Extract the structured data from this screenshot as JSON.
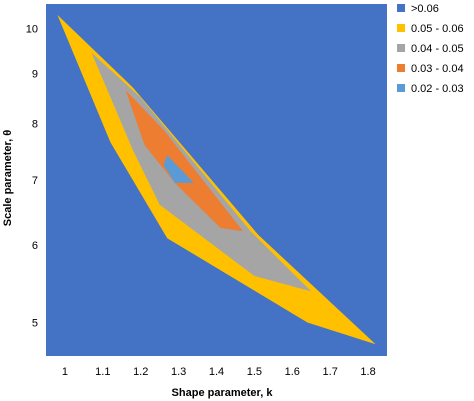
{
  "chart_data": {
    "type": "contour",
    "xlabel": "Shape parameter, k",
    "ylabel": "Scale parameter, θ",
    "x_ticks": [
      1,
      1.1,
      1.2,
      1.3,
      1.4,
      1.5,
      1.6,
      1.7,
      1.8
    ],
    "y_ticks": [
      5,
      6,
      7,
      8,
      9,
      10
    ],
    "y_scale": "log",
    "xlim": [
      0.95,
      1.85
    ],
    "ylim": [
      4.62,
      10.6
    ],
    "legend_position": "right",
    "legend": [
      {
        "label": ">0.06",
        "color": "#4472C4"
      },
      {
        "label": "0.05 - 0.06",
        "color": "#FFC000"
      },
      {
        "label": "0.04 - 0.05",
        "color": "#A5A5A5"
      },
      {
        "label": "0.03 - 0.04",
        "color": "#ED7D31"
      },
      {
        "label": "0.02 - 0.03",
        "color": "#5B9BD5"
      }
    ],
    "regions": [
      {
        "level": "0.05 - 0.06",
        "color": "#FFC000",
        "points": [
          [
            0.98,
            10.33
          ],
          [
            1.18,
            8.7
          ],
          [
            1.51,
            6.15
          ],
          [
            1.82,
            4.75
          ],
          [
            1.64,
            5.0
          ],
          [
            1.27,
            6.1
          ],
          [
            1.12,
            7.65
          ]
        ]
      },
      {
        "level": "0.04 - 0.05",
        "color": "#A5A5A5",
        "points": [
          [
            1.07,
            9.45
          ],
          [
            1.2,
            8.5
          ],
          [
            1.49,
            6.2
          ],
          [
            1.65,
            5.38
          ],
          [
            1.5,
            5.58
          ],
          [
            1.25,
            6.6
          ],
          [
            1.18,
            7.5
          ]
        ]
      },
      {
        "level": "0.03 - 0.04",
        "color": "#ED7D31",
        "points": [
          [
            1.16,
            8.65
          ],
          [
            1.26,
            7.88
          ],
          [
            1.47,
            6.2
          ],
          [
            1.41,
            6.25
          ],
          [
            1.29,
            6.95
          ],
          [
            1.21,
            7.6
          ]
        ]
      },
      {
        "level": "0.02 - 0.03",
        "color": "#5B9BD5",
        "points": [
          [
            1.27,
            7.42
          ],
          [
            1.34,
            6.95
          ],
          [
            1.29,
            6.95
          ],
          [
            1.26,
            7.25
          ]
        ]
      }
    ]
  }
}
